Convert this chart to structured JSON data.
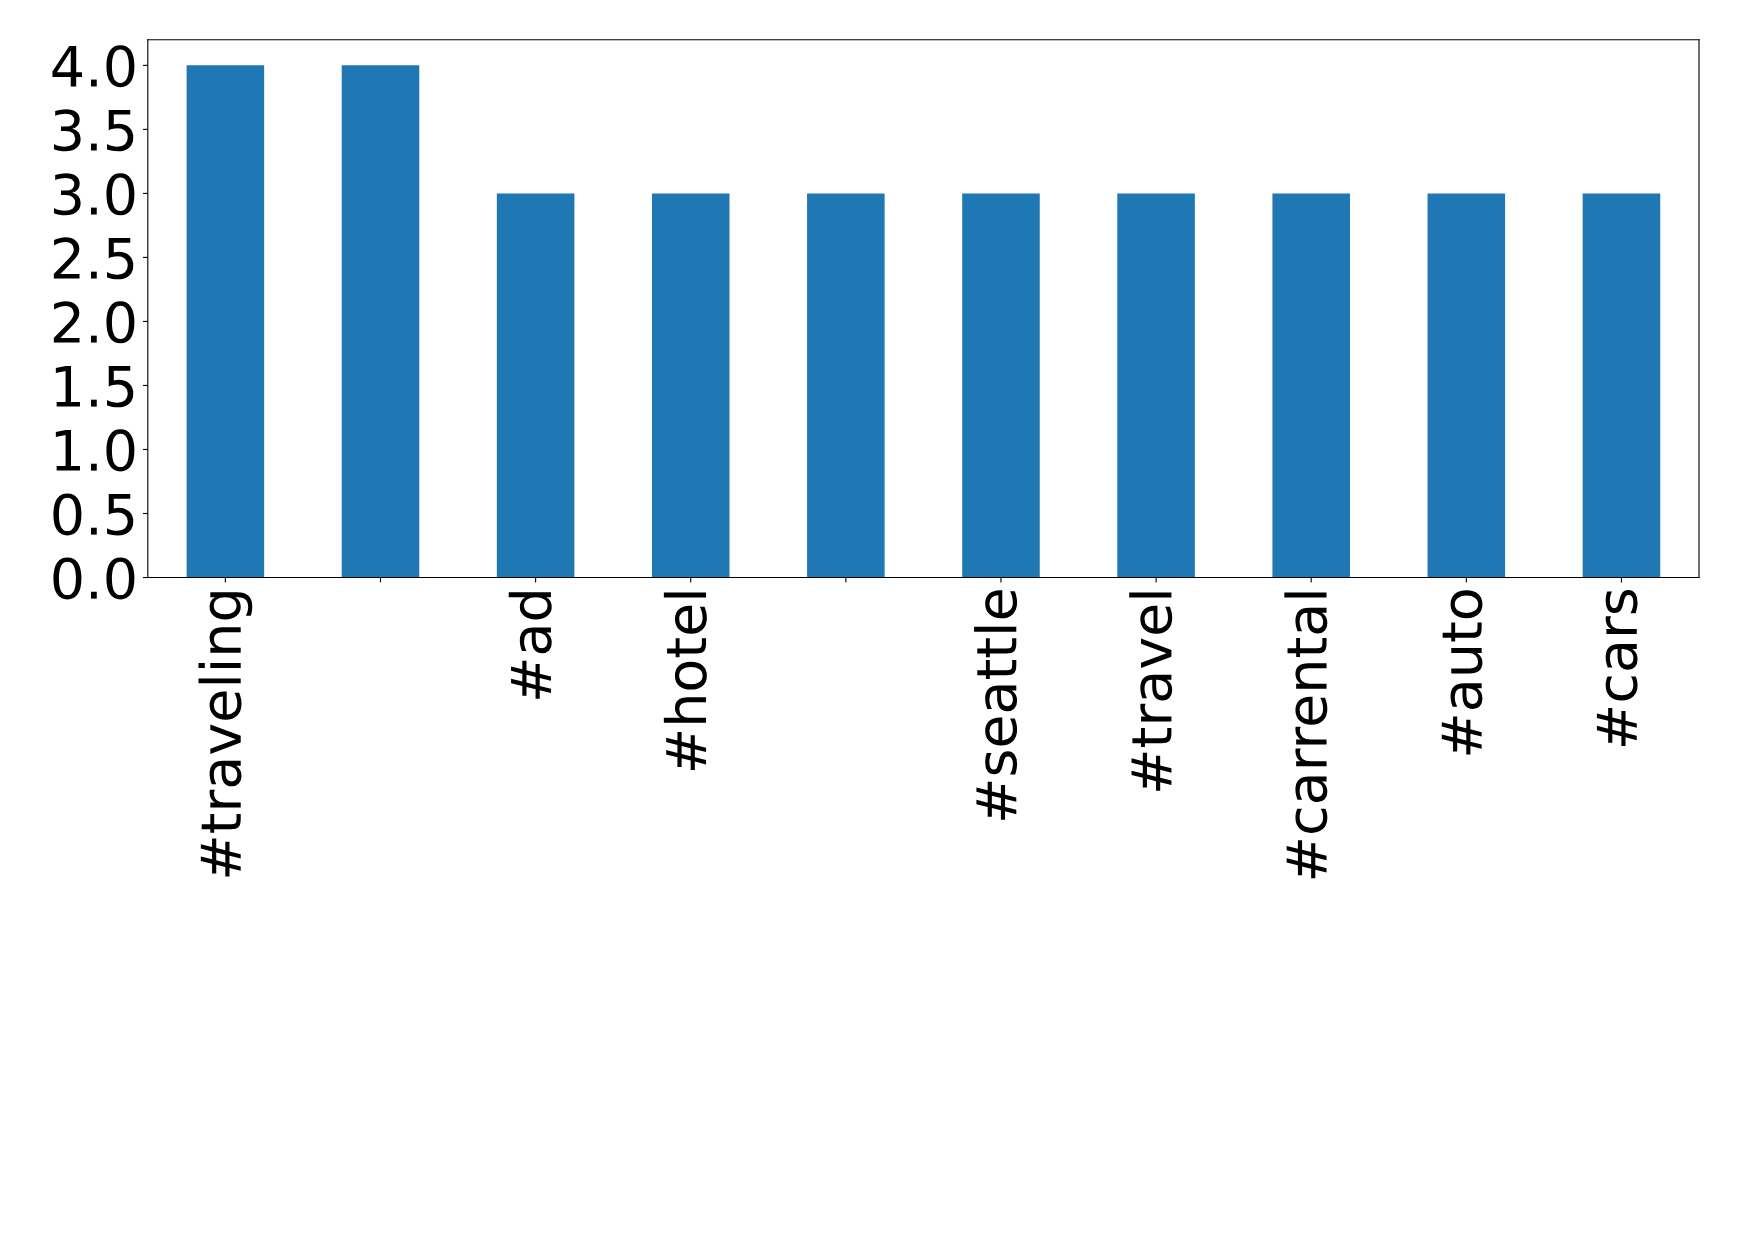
{
  "chart_data": {
    "type": "bar",
    "categories": [
      "#traveling",
      null,
      "#ad",
      "#hotel",
      null,
      "#seattle",
      "#travel",
      "#carrental",
      "#auto",
      "#cars"
    ],
    "values": [
      4,
      4,
      3,
      3,
      3,
      3,
      3,
      3,
      3,
      3
    ],
    "color": "#1f77b4",
    "ylim": [
      0,
      4.2
    ],
    "yticks": [
      {
        "value": 0,
        "label": "0.0"
      },
      {
        "value": 0.5,
        "label": "0.5"
      },
      {
        "value": 1,
        "label": "1.0"
      },
      {
        "value": 1.5,
        "label": "1.5"
      },
      {
        "value": 2,
        "label": "2.0"
      },
      {
        "value": 2.5,
        "label": "2.5"
      },
      {
        "value": 3,
        "label": "3.0"
      },
      {
        "value": 3.5,
        "label": "3.5"
      },
      {
        "value": 4,
        "label": "4.0"
      }
    ],
    "grid": false
  }
}
